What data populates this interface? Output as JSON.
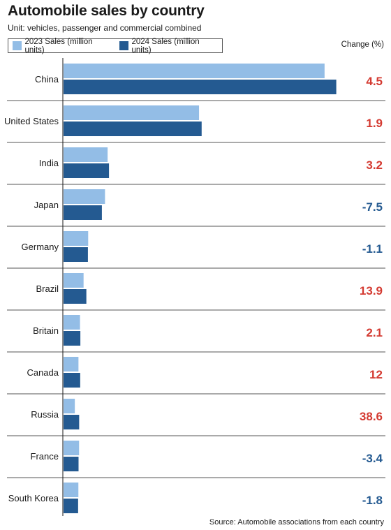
{
  "title": "Automobile sales by country",
  "subtitle": "Unit: vehicles, passenger and commercial combined",
  "legend": {
    "series_2023": "2023 Sales (million units)",
    "series_2024": "2024 Sales (million units)"
  },
  "change_header": "Change (%)",
  "source": "Source: Automobile associations from each country",
  "colors": {
    "series_2023": "#93bde6",
    "series_2024": "#245a91",
    "positive": "#d43a31",
    "negative": "#245a91",
    "separator": "#555555"
  },
  "chart_data": {
    "type": "bar",
    "orientation": "horizontal",
    "title": "Automobile sales by country",
    "subtitle": "Unit: vehicles, passenger and commercial combined",
    "categories": [
      "China",
      "United States",
      "India",
      "Japan",
      "Germany",
      "Brazil",
      "Britain",
      "Canada",
      "Russia",
      "France",
      "South Korea"
    ],
    "series": [
      {
        "name": "2023 Sales (million units)",
        "values": [
          30.09,
          15.62,
          5.08,
          4.78,
          2.84,
          2.31,
          1.9,
          1.72,
          1.3,
          1.79,
          1.71
        ]
      },
      {
        "name": "2024 Sales (million units)",
        "values": [
          31.44,
          15.92,
          5.24,
          4.42,
          2.81,
          2.63,
          1.94,
          1.92,
          1.8,
          1.73,
          1.68
        ]
      }
    ],
    "change_percent": [
      4.5,
      1.9,
      3.2,
      -7.5,
      -1.1,
      13.9,
      2.1,
      12,
      38.6,
      -3.4,
      -1.8
    ],
    "change_labels": [
      "4.5",
      "1.9",
      "3.2",
      "-7.5",
      "-1.1",
      "13.9",
      "2.1",
      "12",
      "38.6",
      "-3.4",
      "-1.8"
    ],
    "xlim": [
      0,
      33
    ],
    "legend_position": "top-left",
    "grid": false
  }
}
